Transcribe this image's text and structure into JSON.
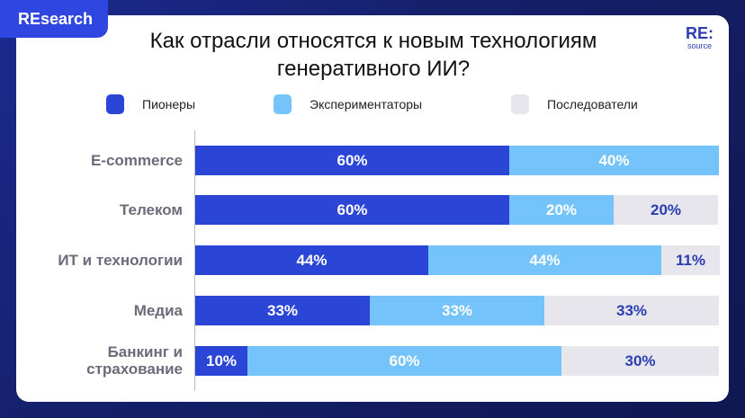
{
  "badge": "REsearch",
  "logo": {
    "main": "RE:",
    "sub": "source"
  },
  "colors": {
    "pioneers": "#2b45d6",
    "experimenters": "#74c4fb",
    "followers": "#e6e6ec",
    "label_dark": "#2b3db0"
  },
  "chart_data": {
    "type": "bar",
    "orientation": "horizontal-stacked",
    "title": "Как отрасли относятся к новым технологиям генеративного ИИ?",
    "categories": [
      "E-commerce",
      "Телеком",
      "ИТ и технологии",
      "Медиа",
      "Банкинг и страхование"
    ],
    "series": [
      {
        "name": "Пионеры",
        "values": [
          60,
          60,
          44,
          33,
          10
        ]
      },
      {
        "name": "Экспериментаторы",
        "values": [
          40,
          20,
          44,
          33,
          60
        ]
      },
      {
        "name": "Последователи",
        "values": [
          0,
          20,
          11,
          33,
          30
        ]
      }
    ],
    "unit": "%",
    "legend": "top",
    "grid": false
  }
}
